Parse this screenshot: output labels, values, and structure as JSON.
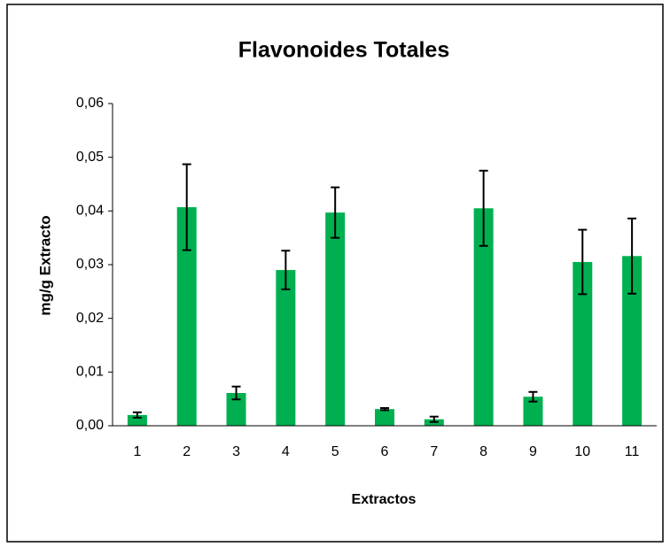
{
  "chart_data": {
    "type": "bar",
    "title": "Flavonoides Totales",
    "x_label": "Extractos",
    "y_label": "mg/g Extracto",
    "categories": [
      "1",
      "2",
      "3",
      "4",
      "5",
      "6",
      "7",
      "8",
      "9",
      "10",
      "11"
    ],
    "values": [
      0.002,
      0.0407,
      0.0061,
      0.029,
      0.0397,
      0.0031,
      0.0012,
      0.0405,
      0.0054,
      0.0305,
      0.0316
    ],
    "errors": [
      0.0005,
      0.008,
      0.0012,
      0.0036,
      0.0047,
      0.0002,
      0.0005,
      0.007,
      0.0009,
      0.006,
      0.007
    ],
    "color": "#00b050",
    "ylim": [
      0,
      0.06
    ],
    "yticks": [
      {
        "value": 0,
        "label": "0,00"
      },
      {
        "value": 0.01,
        "label": "0,01"
      },
      {
        "value": 0.02,
        "label": "0,02"
      },
      {
        "value": 0.03,
        "label": "0,03"
      },
      {
        "value": 0.04,
        "label": "0,04"
      },
      {
        "value": 0.05,
        "label": "0,05"
      },
      {
        "value": 0.06,
        "label": "0,06"
      }
    ],
    "grid": false
  }
}
